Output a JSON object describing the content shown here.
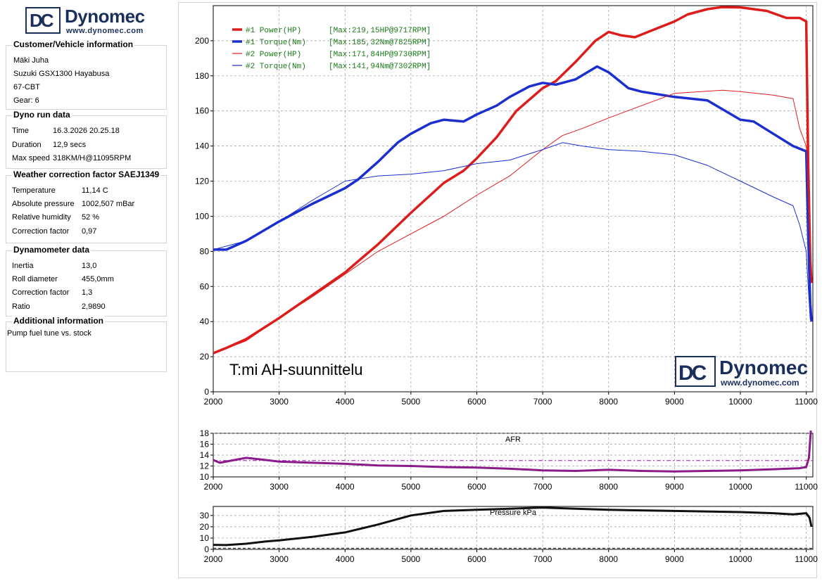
{
  "logo": {
    "letters": "DC",
    "name": "Dynomec",
    "url": "www.dynomec.com"
  },
  "customer": {
    "title": "Customer/Vehicle information",
    "lines": [
      "Mäki Juha",
      "Suzuki GSX1300 Hayabusa",
      "67-CBT",
      "Gear: 6"
    ]
  },
  "dyno_run": {
    "title": "Dyno run data",
    "rows": [
      {
        "label": "Time",
        "value": "16.3.2026 20.25.18"
      },
      {
        "label": "Duration",
        "value": "12,9 secs"
      },
      {
        "label": "Max speed",
        "value": "318KM/H@11095RPM"
      }
    ]
  },
  "weather": {
    "title": "Weather correction factor SAEJ1349",
    "rows": [
      {
        "label": "Temperature",
        "value": "11,14 C"
      },
      {
        "label": "Absolute pressure",
        "value": "1002,507 mBar"
      },
      {
        "label": "Relative humidity",
        "value": "52 %"
      },
      {
        "label": "Correction factor",
        "value": "0,97"
      }
    ]
  },
  "dynamometer": {
    "title": "Dynamometer data",
    "rows": [
      {
        "label": "Inertia",
        "value": "13,0"
      },
      {
        "label": "Roll diameter",
        "value": "455,0mm"
      },
      {
        "label": "Correction factor",
        "value": "1,3"
      },
      {
        "label": "Ratio",
        "value": "2,9890"
      }
    ]
  },
  "additional": {
    "title": "Additional information",
    "text": "Pump fuel tune vs. stock"
  },
  "chart_data": [
    {
      "type": "line",
      "annotation": "T:mi AH-suunnittelu",
      "xlim": [
        2000,
        11100
      ],
      "ylim": [
        0,
        220
      ],
      "xticks": [
        2000,
        3000,
        4000,
        5000,
        6000,
        7000,
        8000,
        9000,
        10000,
        11000
      ],
      "yticks": [
        0,
        20,
        40,
        60,
        80,
        100,
        120,
        140,
        160,
        180,
        200
      ],
      "grid": true,
      "legend_position": "top-left",
      "series": [
        {
          "name": "#1 Power(HP)",
          "max": "[Max:219,15HP@9717RPM]",
          "color": "#dd1c1c",
          "weight": "thick",
          "x": [
            2000,
            2200,
            2500,
            3000,
            3500,
            4000,
            4500,
            5000,
            5500,
            5800,
            6000,
            6300,
            6600,
            7000,
            7200,
            7500,
            7800,
            8000,
            8200,
            8400,
            8600,
            9000,
            9200,
            9500,
            9717,
            10000,
            10400,
            10700,
            10900,
            11000,
            11030,
            11060,
            11080
          ],
          "y": [
            22,
            25,
            30,
            42,
            55,
            68,
            84,
            102,
            119,
            126,
            133,
            145,
            160,
            173,
            177,
            188,
            200,
            205,
            203,
            202,
            205,
            211,
            215,
            218,
            219.15,
            219,
            217,
            213,
            213,
            211,
            130,
            75,
            62
          ]
        },
        {
          "name": "#1 Torque(Nm)",
          "max": "[Max:185,32Nm@7825RPM]",
          "color": "#1b2fcf",
          "weight": "thick",
          "x": [
            2000,
            2200,
            2500,
            3000,
            3500,
            4000,
            4200,
            4500,
            4800,
            5000,
            5300,
            5500,
            5800,
            6000,
            6300,
            6500,
            6800,
            7000,
            7200,
            7500,
            7825,
            8000,
            8300,
            8500,
            9000,
            9500,
            10000,
            10200,
            10500,
            10800,
            11000,
            11030,
            11060,
            11080
          ],
          "y": [
            81,
            81,
            86,
            97,
            107,
            116,
            121,
            131,
            142,
            147,
            153,
            155,
            154,
            158,
            163,
            168,
            174,
            176,
            175,
            178,
            185.32,
            182,
            173,
            171,
            168,
            166,
            155,
            154,
            147,
            140,
            137,
            90,
            50,
            40
          ]
        },
        {
          "name": "#2 Power(HP)",
          "max": "[Max:171,84HP@9730RPM]",
          "color": "#dd1c1c",
          "weight": "thin",
          "x": [
            2000,
            2500,
            3000,
            3500,
            4000,
            4500,
            5000,
            5500,
            6000,
            6500,
            7000,
            7300,
            7600,
            8000,
            8500,
            9000,
            9730,
            10000,
            10500,
            10800,
            10900,
            11000,
            11040,
            11070
          ],
          "y": [
            22,
            29,
            42,
            54,
            67,
            80,
            90,
            100,
            112,
            123,
            138,
            146,
            150,
            156,
            163,
            170,
            171.84,
            171,
            169,
            167,
            150,
            140,
            100,
            65
          ]
        },
        {
          "name": "#2 Torque(Nm)",
          "max": "[Max:141,94Nm@7302RPM]",
          "color": "#1b2fcf",
          "weight": "thin",
          "x": [
            2000,
            2500,
            3000,
            3500,
            4000,
            4500,
            5000,
            5500,
            6000,
            6500,
            7000,
            7302,
            7600,
            8000,
            8500,
            9000,
            9500,
            10000,
            10500,
            10800,
            10900,
            11000,
            11030,
            11060
          ],
          "y": [
            81,
            86,
            97,
            109,
            120,
            123,
            124,
            126,
            130,
            132,
            138,
            141.94,
            140,
            138,
            137,
            135,
            129,
            120,
            111,
            106,
            95,
            80,
            60,
            41
          ]
        }
      ]
    },
    {
      "type": "line",
      "title": "AFR",
      "xlim": [
        2000,
        11100
      ],
      "ylim": [
        10,
        18
      ],
      "xticks": [
        2000,
        3000,
        4000,
        5000,
        6000,
        7000,
        8000,
        9000,
        10000,
        11000
      ],
      "yticks": [
        10,
        12,
        14,
        16,
        18
      ],
      "reference_line": 13,
      "series": [
        {
          "name": "AFR",
          "color": "#8b1a8b",
          "x": [
            2000,
            2100,
            2500,
            2800,
            3000,
            3500,
            4000,
            4500,
            5000,
            5500,
            6000,
            6500,
            7000,
            7500,
            8000,
            8500,
            9000,
            9500,
            10000,
            10500,
            10900,
            11000,
            11040,
            11070
          ],
          "y": [
            13.1,
            12.6,
            13.5,
            13.1,
            12.8,
            12.6,
            12.4,
            12.1,
            12.0,
            11.8,
            11.7,
            11.5,
            11.2,
            11.1,
            11.3,
            11.1,
            11.0,
            11.1,
            11.2,
            11.4,
            11.6,
            11.8,
            13.5,
            18.5
          ]
        }
      ]
    },
    {
      "type": "line",
      "title": "Pressure kPa",
      "xlim": [
        2000,
        11100
      ],
      "ylim": [
        0,
        38
      ],
      "xticks": [
        2000,
        3000,
        4000,
        5000,
        6000,
        7000,
        8000,
        9000,
        10000,
        11000
      ],
      "yticks": [
        0,
        10,
        20,
        30
      ],
      "series": [
        {
          "name": "Pressure kPa",
          "color": "#111111",
          "x": [
            2000,
            2200,
            2500,
            2800,
            3000,
            3500,
            4000,
            4500,
            5000,
            5500,
            6000,
            6500,
            7000,
            7500,
            8000,
            9000,
            10000,
            10500,
            10800,
            11000,
            11050,
            11080
          ],
          "y": [
            4,
            3.8,
            5,
            7,
            8,
            11,
            15,
            22,
            30,
            34,
            35,
            36,
            37,
            36,
            35,
            34,
            33,
            32,
            31,
            32,
            28,
            20
          ]
        },
        {
          "name": "baseline",
          "color": "#111111",
          "dashed": true,
          "x": [
            2000,
            11100
          ],
          "y": [
            1,
            1
          ]
        }
      ]
    }
  ]
}
